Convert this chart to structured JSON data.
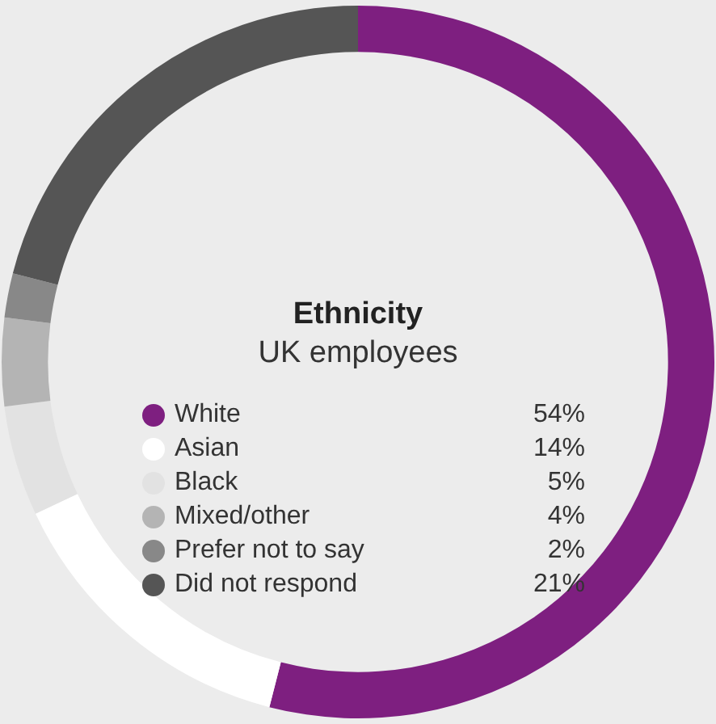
{
  "chart_data": {
    "type": "donut",
    "title": "Ethnicity",
    "subtitle": "UK employees",
    "categories": [
      "White",
      "Asian",
      "Black",
      "Mixed/other",
      "Prefer not to say",
      "Did not respond"
    ],
    "values": [
      54,
      14,
      5,
      4,
      2,
      21
    ],
    "colors": [
      "#7e1f80",
      "#ffffff",
      "#e2e2e2",
      "#b4b4b4",
      "#888888",
      "#555555"
    ],
    "value_labels": [
      "54%",
      "14%",
      "5%",
      "4%",
      "2%",
      "21%"
    ],
    "legend": "center"
  }
}
